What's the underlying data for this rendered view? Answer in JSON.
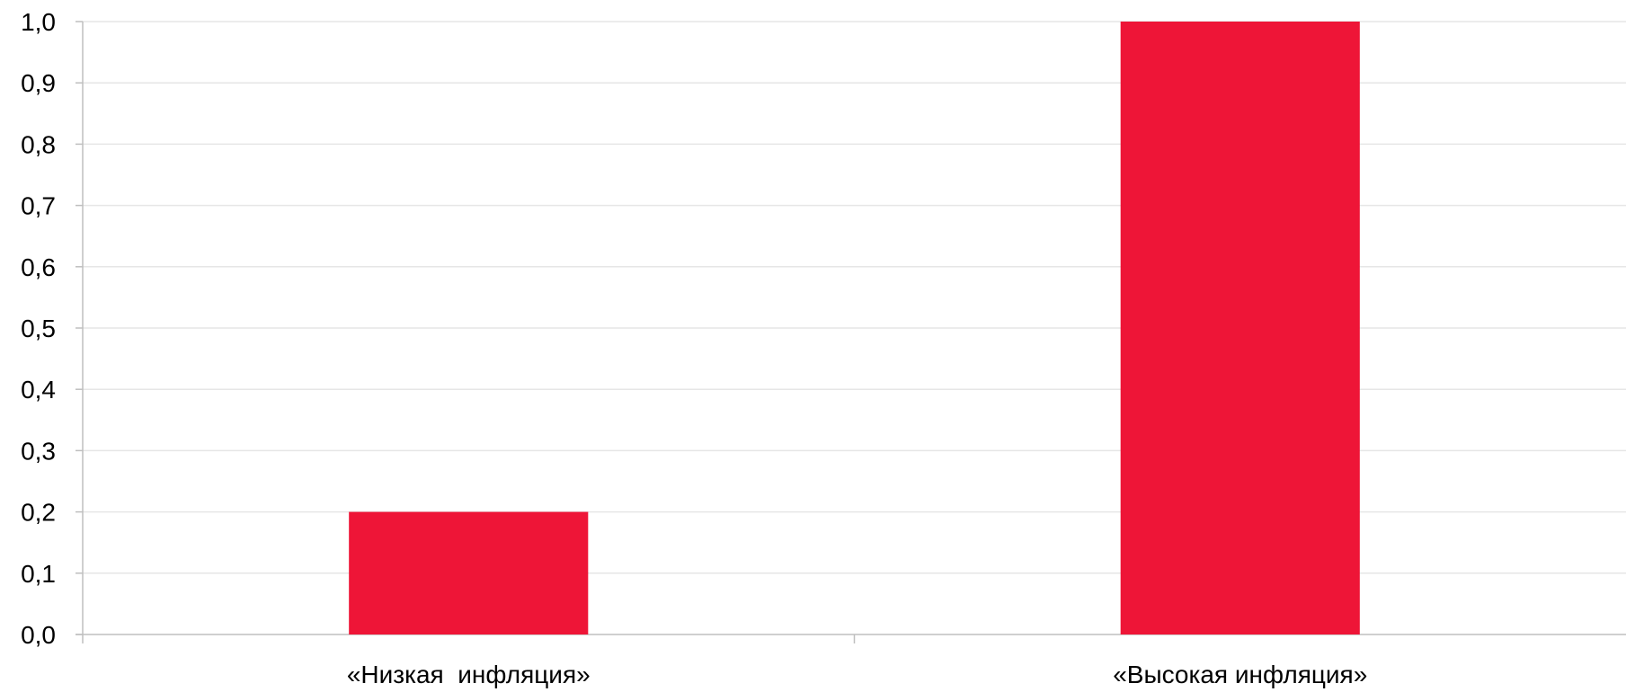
{
  "chart_data": {
    "type": "bar",
    "categories": [
      "«Низкая  инфляция»",
      "«Высокая инфляция»"
    ],
    "values": [
      0.2,
      1.0
    ],
    "ylim": [
      0,
      1.0
    ],
    "ytick_step": 0.1,
    "ytick_labels": [
      "0,0",
      "0,1",
      "0,2",
      "0,3",
      "0,4",
      "0,5",
      "0,6",
      "0,7",
      "0,8",
      "0,9",
      "1,0"
    ],
    "grid": true,
    "legend": "none",
    "colors": {
      "bar": "#EE1537",
      "grid": "#E6E6E6",
      "axis": "#BFBFBF"
    }
  }
}
